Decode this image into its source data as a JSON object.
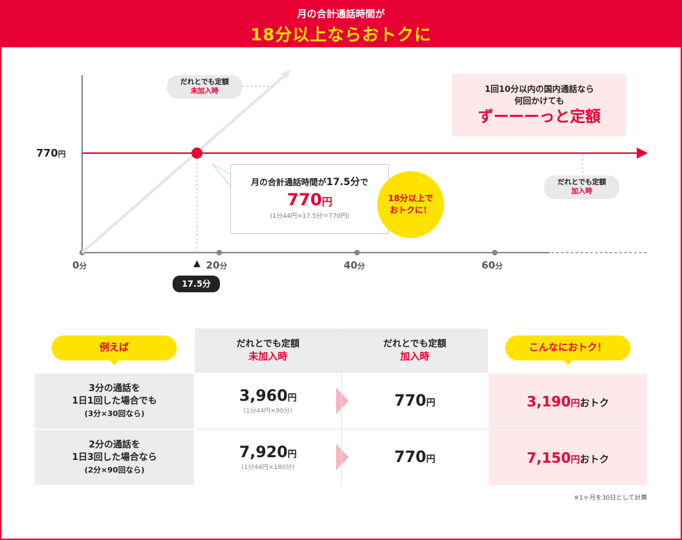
{
  "header": {
    "line1": "月の合計通話時間が",
    "line2": "18分以上ならおトクに"
  },
  "chart_data": {
    "type": "line",
    "xlabel": "",
    "ylabel": "",
    "x_ticks": [
      "0分",
      "20分",
      "40分",
      "60分"
    ],
    "y_ticks": [
      "770円"
    ],
    "series": [
      {
        "name": "だれとでも定額 未加入時",
        "points": [
          [
            0,
            0
          ],
          [
            30,
            1320
          ]
        ]
      },
      {
        "name": "だれとでも定額 加入時",
        "points": [
          [
            0,
            770
          ],
          [
            82,
            770
          ]
        ]
      }
    ],
    "intersection": {
      "x": 17.5,
      "y": 770,
      "label": "17.5分"
    },
    "labels": {
      "nonmember_top": "だれとでも定額",
      "nonmember_bottom": "未加入時",
      "member_top": "だれとでも定額",
      "member_bottom": "加入時"
    }
  },
  "yaxis": {
    "value": "770",
    "unit": "円"
  },
  "xaxis": [
    {
      "value": "0",
      "unit": "分"
    },
    {
      "value": "20",
      "unit": "分"
    },
    {
      "value": "40",
      "unit": "分"
    },
    {
      "value": "60",
      "unit": "分"
    }
  ],
  "flag": "17.5分",
  "info": {
    "line1": "1回10分以内の国内通話なら",
    "line2": "何回かけても",
    "big": "ずーーーっと定額"
  },
  "callout": {
    "pre": "月の合計通話時間が",
    "num": "17.5分",
    "post": "で",
    "price": "770",
    "price_unit": "円",
    "calc": "(1分44円×17.5分＝770円)"
  },
  "badge": {
    "line1": "18分以上で",
    "line2": "おトクに！"
  },
  "table": {
    "example": "例えば",
    "col1_top": "だれとでも定額",
    "col1_bottom": "未加入時",
    "col2_top": "だれとでも定額",
    "col2_bottom": "加入時",
    "col3": "こんなにおトク！",
    "rows": [
      {
        "l1": "3分の通話を",
        "l2": "1日1回した場合でも",
        "l3": "(3分×30回なら)",
        "nonmember": "3,960",
        "nonmember_calc": "(1分44円×90分)",
        "member": "770",
        "save": "3,190"
      },
      {
        "l1": "2分の通話を",
        "l2": "1日3回した場合なら",
        "l3": "(2分×90回なら)",
        "nonmember": "7,920",
        "nonmember_calc": "(1分44円×180分)",
        "member": "770",
        "save": "7,150"
      }
    ],
    "yen": "円",
    "otoku": "おトク"
  },
  "note": "※1ヶ月を30日として計算",
  "colors": {
    "brand": "#e60033",
    "yellow": "#ffe300",
    "pink": "#fde8ea"
  }
}
